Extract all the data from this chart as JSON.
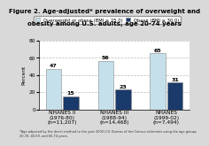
{
  "title_line1": "Figure 2. Age-adjusted* prevalence of overweight and",
  "title_line2": "obesity among U.S. adults, age 20-74 years",
  "ylabel": "Percent",
  "groups": [
    "NHANES II\n(1976-80)\n(n=11,207)",
    "NHANES III\n(1988-94)\n(n=14,468)",
    "NHANES\n(1999-02)\n(n=7,494)"
  ],
  "overweight_values": [
    47,
    56,
    65
  ],
  "obese_values": [
    15,
    23,
    31
  ],
  "overweight_color": "#c5e0eb",
  "obese_color": "#1a3a6b",
  "ylim": [
    0,
    80
  ],
  "yticks": [
    0,
    20,
    40,
    60,
    80
  ],
  "legend_overweight": "Overweight or obese (BMI ≥ 25.0)",
  "legend_obese": "Obese (BMI ≥ 30.0)",
  "background_color": "#d9d9d9",
  "plot_bg_color": "#ffffff",
  "title_fontsize": 5.0,
  "label_fontsize": 4.2,
  "tick_fontsize": 4.2,
  "bar_value_fontsize": 4.5,
  "legend_fontsize": 3.8,
  "footnote": "*Age-adjusted by the direct method to the year 2000 U.S. Bureau of the Census estimates using the age groups\n20-39, 40-59, and 60-74 years."
}
